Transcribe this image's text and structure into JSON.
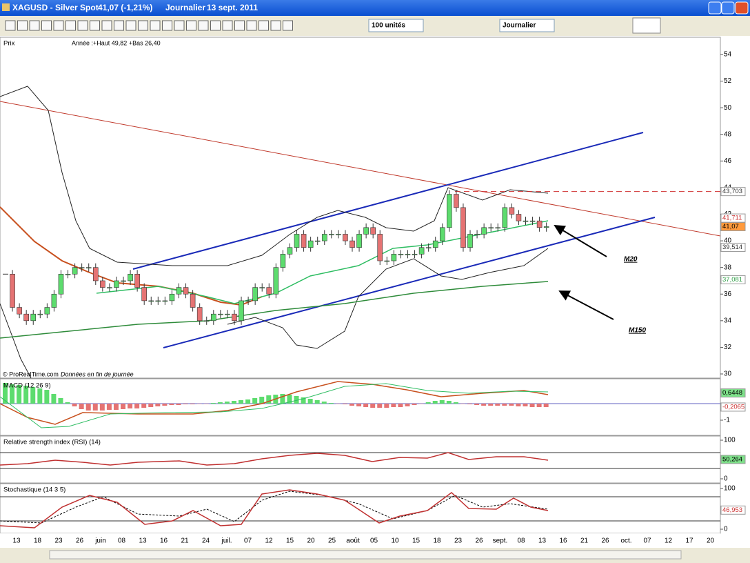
{
  "window": {
    "title": "XAGUSD - Silver Spot",
    "quote": "41,07 (-1,21%)",
    "period": "Journalier",
    "date": "13 sept. 2011"
  },
  "toolbar": {
    "units": "100 unités",
    "timeframe": "Journalier"
  },
  "chart_data": [
    {
      "type": "candlestick",
      "title": "Prix",
      "subtitle": "Année :+Haut 49,82 +Bas 26,40",
      "source": "© ProRealTime.com",
      "note": "Données en fin de journée",
      "annotations": [
        "M20",
        "M150"
      ],
      "values": [
        37.5,
        35,
        34.5,
        34,
        34.5,
        34.5,
        35,
        36,
        37.5,
        37.5,
        38,
        38,
        38,
        37,
        36.5,
        36.5,
        37,
        37,
        37.5,
        36.5,
        35.5,
        35.5,
        35.5,
        35.5,
        36,
        36.5,
        36,
        35,
        34,
        34,
        34.5,
        34.5,
        34.5,
        34,
        35.5,
        35.5,
        36.5,
        36.5,
        36,
        38,
        39,
        39.5,
        40.5,
        39.5,
        40,
        40,
        40.5,
        40.5,
        40.5,
        40,
        39.5,
        40.5,
        41,
        40.5,
        38.5,
        38.5,
        39,
        39,
        39,
        39,
        39.5,
        39.5,
        40,
        41,
        43.5,
        42.5,
        39.5,
        40.5,
        40.5,
        41,
        41,
        41,
        42.5,
        42,
        41.5,
        41.5,
        41.5,
        41,
        41.07
      ],
      "up_color": "#5ddc6e",
      "down_color": "#e57373",
      "ylim": [
        30,
        54
      ],
      "yticks": [
        30,
        32,
        34,
        36,
        38,
        40,
        42,
        44,
        46,
        48,
        50,
        52,
        54
      ],
      "markers": [
        {
          "value": 43.703,
          "label": "43,703",
          "color": "#333333",
          "fill": "#ffffff"
        },
        {
          "value": 41.711,
          "label": "41,711",
          "color": "#cc3333",
          "fill": "#ffffff"
        },
        {
          "value": 41.07,
          "label": "41,07",
          "color": "#000000",
          "fill": "#ff9a3c"
        },
        {
          "value": 39.514,
          "label": "39,514",
          "color": "#333333",
          "fill": "#ffffff"
        },
        {
          "value": 37.081,
          "label": "37,081",
          "color": "#2e9e45",
          "fill": "#ffffff"
        }
      ],
      "date_labels": [
        "13",
        "18",
        "23",
        "26",
        "juin",
        "08",
        "13",
        "16",
        "21",
        "24",
        "juil.",
        "07",
        "12",
        "15",
        "20",
        "25",
        "août",
        "05",
        "10",
        "15",
        "18",
        "23",
        "26",
        "sept.",
        "08",
        "13",
        "16",
        "21",
        "26",
        "oct.",
        "07",
        "12",
        "17",
        "20"
      ]
    },
    {
      "type": "line",
      "title": "MACD (12 26 9)",
      "ylim": [
        -1.875,
        1.375
      ],
      "yticks": [
        -1
      ],
      "markers": [
        {
          "value": 0.6448,
          "label": "0,6448",
          "color": "#000000",
          "fill": "#7ee08a"
        },
        {
          "value": -0.2065,
          "label": "-0,2065",
          "color": "#cc3333",
          "fill": "#ffffff"
        }
      ]
    },
    {
      "type": "line",
      "title": "Relative strength index (RSI) (14)",
      "ylim": [
        0,
        100
      ],
      "yticks": [
        0,
        100
      ],
      "markers": [
        {
          "value": 50.264,
          "label": "50,264",
          "color": "#000000",
          "fill": "#7ee08a"
        }
      ]
    },
    {
      "type": "line",
      "title": "Stochastique (14 3 5)",
      "ylim": [
        0,
        100
      ],
      "yticks": [
        0,
        100
      ],
      "markers": [
        {
          "value": 46.953,
          "label": "46,953",
          "color": "#cc3333",
          "fill": "#ffffff"
        }
      ]
    }
  ]
}
